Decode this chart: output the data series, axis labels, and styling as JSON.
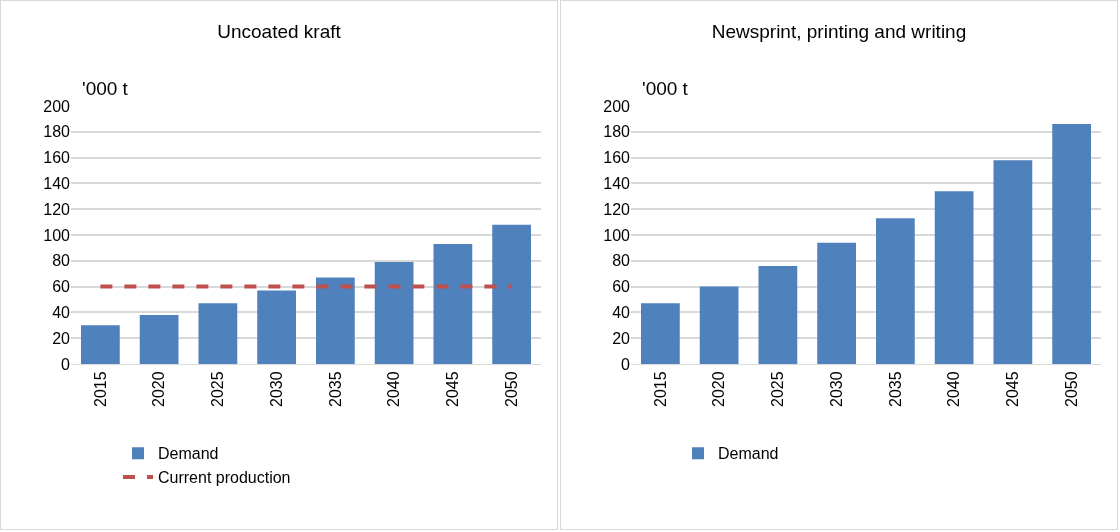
{
  "chart_data": [
    {
      "type": "bar",
      "title": "Uncoated kraft",
      "ylabel": "'000 t",
      "categories": [
        "2015",
        "2020",
        "2025",
        "2030",
        "2035",
        "2040",
        "2045",
        "2050"
      ],
      "ylim": [
        0,
        200
      ],
      "yticks": [
        0,
        20,
        40,
        60,
        80,
        100,
        120,
        140,
        160,
        180,
        200
      ],
      "grid": "y",
      "legend": "bottom",
      "series": [
        {
          "name": "Demand",
          "color": "#4f81bd",
          "values": [
            30,
            38,
            47,
            57,
            67,
            79,
            93,
            108
          ]
        },
        {
          "name": "Current production",
          "type": "line",
          "color": "#c0504d",
          "line_style": "dashed",
          "values": [
            60,
            60,
            60,
            60,
            60,
            60,
            60,
            60
          ]
        }
      ]
    },
    {
      "type": "bar",
      "title": "Newsprint, printing and writing",
      "ylabel": "'000 t",
      "categories": [
        "2015",
        "2020",
        "2025",
        "2030",
        "2035",
        "2040",
        "2045",
        "2050"
      ],
      "ylim": [
        0,
        200
      ],
      "yticks": [
        0,
        20,
        40,
        60,
        80,
        100,
        120,
        140,
        160,
        180,
        200
      ],
      "grid": "y",
      "legend": "bottom",
      "series": [
        {
          "name": "Demand",
          "color": "#4f81bd",
          "values": [
            47,
            60,
            76,
            94,
            113,
            134,
            158,
            186
          ]
        }
      ]
    }
  ]
}
